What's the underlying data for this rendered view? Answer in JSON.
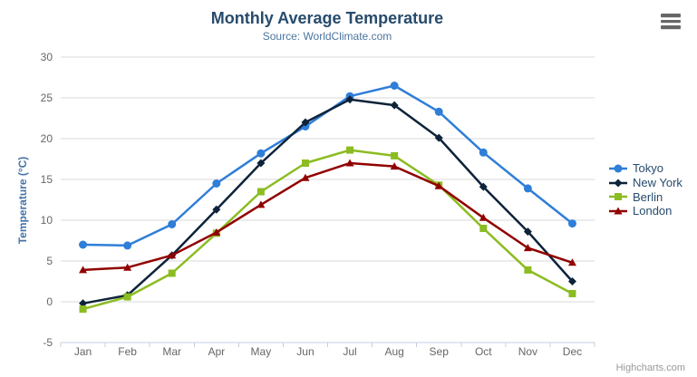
{
  "chart_data": {
    "type": "line",
    "title": "Monthly Average Temperature",
    "subtitle": "Source: WorldClimate.com",
    "categories": [
      "Jan",
      "Feb",
      "Mar",
      "Apr",
      "May",
      "Jun",
      "Jul",
      "Aug",
      "Sep",
      "Oct",
      "Nov",
      "Dec"
    ],
    "xlabel": "",
    "ylabel": "Temperature (°C)",
    "ylim": [
      -5,
      30
    ],
    "ytick_interval": 5,
    "yticks": [
      -5,
      0,
      5,
      10,
      15,
      20,
      25,
      30
    ],
    "grid": true,
    "legend_position": "right",
    "series": [
      {
        "name": "Tokyo",
        "color": "#2f7ed8",
        "marker": "circle",
        "values": [
          7.0,
          6.9,
          9.5,
          14.5,
          18.2,
          21.5,
          25.2,
          26.5,
          23.3,
          18.3,
          13.9,
          9.6
        ]
      },
      {
        "name": "New York",
        "color": "#0d233a",
        "marker": "diamond",
        "values": [
          -0.2,
          0.8,
          5.7,
          11.3,
          17.0,
          22.0,
          24.8,
          24.1,
          20.1,
          14.1,
          8.6,
          2.5
        ]
      },
      {
        "name": "Berlin",
        "color": "#8bbc21",
        "marker": "square",
        "values": [
          -0.9,
          0.6,
          3.5,
          8.4,
          13.5,
          17.0,
          18.6,
          17.9,
          14.3,
          9.0,
          3.9,
          1.0
        ]
      },
      {
        "name": "London",
        "color": "#910000",
        "marker": "triangle",
        "values": [
          3.9,
          4.2,
          5.7,
          8.5,
          11.9,
          15.2,
          17.0,
          16.6,
          14.2,
          10.3,
          6.6,
          4.8
        ]
      }
    ]
  },
  "export_menu": {
    "icon": "hamburger-icon"
  },
  "credits": {
    "label": "Highcharts.com"
  },
  "colors": {
    "title": "#274b6d",
    "subtitle": "#4d759e",
    "axis_labels": "#666666",
    "y_axis_title": "#4572a7",
    "legend_text": "#274b6d",
    "grid": "#d8d8d8",
    "axis_line": "#c0d0e0",
    "credits": "#999999",
    "menu_icon": "#666666",
    "background": "#ffffff"
  }
}
